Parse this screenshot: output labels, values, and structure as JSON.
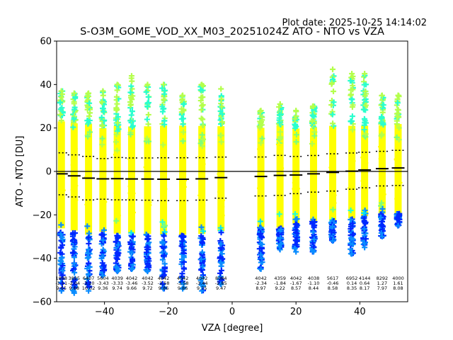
{
  "chart_data": {
    "type": "scatter",
    "plot_date": "Plot date: 2025-10-25 14:14:02",
    "title": "S-O3M_GOME_VOD_XX_M03_20251024Z ATO - NTO vs VZA",
    "xlabel": "VZA [degree]",
    "ylabel": "ATO - NTO [DU]",
    "xlim": [
      -55,
      55
    ],
    "ylim": [
      -60,
      60
    ],
    "xticks": [
      -40,
      -20,
      0,
      20,
      40
    ],
    "xtick_labels": [
      "−40",
      "−20",
      "0",
      "20",
      "40"
    ],
    "yticks": [
      -60,
      -40,
      -20,
      0,
      20,
      40,
      60
    ],
    "ytick_labels": [
      "−60",
      "−40",
      "−20",
      "0",
      "20",
      "40",
      "60"
    ],
    "grid": false,
    "zero_line": 0,
    "marker": "+",
    "colors": {
      "yellow": "#ffff00",
      "lime": "#b4ff4c",
      "green": "#7dff7a",
      "cyan": "#29ffce",
      "teal": "#00e5f7",
      "lightblue": "#0a8cff",
      "blue": "#0028ff",
      "median_line": "#000000",
      "stdev_line": "#000000",
      "axis": "#000000"
    },
    "groups": [
      {
        "vza": -53.5,
        "count": "1898",
        "median": "-1.11",
        "stdev": "9.65",
        "median_value": -1.11,
        "stdev_value": 9.65,
        "range": [
          -55,
          37
        ]
      },
      {
        "vza": -49.5,
        "count": "3895",
        "median": "-2.04",
        "stdev": "9.68",
        "median_value": -2.04,
        "stdev_value": 9.68,
        "range": [
          -56,
          36
        ]
      },
      {
        "vza": -45.0,
        "count": "6407",
        "median": "-3.10",
        "stdev": "10.02",
        "median_value": -3.1,
        "stdev_value": 10.02,
        "range": [
          -55,
          36
        ]
      },
      {
        "vza": -40.5,
        "count": "5604",
        "median": "-3.43",
        "stdev": "9.36",
        "median_value": -3.43,
        "stdev_value": 9.36,
        "range": [
          -48,
          37
        ]
      },
      {
        "vza": -36.0,
        "count": "4039",
        "median": "-3.33",
        "stdev": "9.74",
        "median_value": -3.33,
        "stdev_value": 9.74,
        "range": [
          -46,
          40
        ]
      },
      {
        "vza": -31.5,
        "count": "4042",
        "median": "-3.46",
        "stdev": "9.66",
        "median_value": -3.46,
        "stdev_value": 9.66,
        "range": [
          -45,
          44
        ]
      },
      {
        "vza": -26.5,
        "count": "4042",
        "median": "-3.52",
        "stdev": "9.72",
        "median_value": -3.52,
        "stdev_value": 9.72,
        "range": [
          -46,
          40
        ]
      },
      {
        "vza": -21.5,
        "count": "4042",
        "median": "-3.58",
        "stdev": "9.86",
        "median_value": -3.58,
        "stdev_value": 9.86,
        "range": [
          -54,
          40
        ]
      },
      {
        "vza": -15.5,
        "count": "4042",
        "median": "-3.58",
        "stdev": "9.86",
        "median_value": -3.58,
        "stdev_value": 9.86,
        "range": [
          -54,
          35
        ]
      },
      {
        "vza": -9.5,
        "count": "4042",
        "median": "-3.44",
        "stdev": "9.75",
        "median_value": -3.44,
        "stdev_value": 9.75,
        "range": [
          -55,
          40
        ]
      },
      {
        "vza": -3.5,
        "count": "8084",
        "median": "-2.85",
        "stdev": "9.47",
        "median_value": -2.85,
        "stdev_value": 9.47,
        "range": [
          -52,
          38
        ]
      },
      {
        "vza": 9.0,
        "count": "4042",
        "median": "-2.34",
        "stdev": "8.97",
        "median_value": -2.34,
        "stdev_value": 8.97,
        "range": [
          -45,
          28
        ]
      },
      {
        "vza": 15.0,
        "count": "4359",
        "median": "-1.84",
        "stdev": "9.22",
        "median_value": -1.84,
        "stdev_value": 9.22,
        "range": [
          -36,
          31
        ]
      },
      {
        "vza": 20.0,
        "count": "4042",
        "median": "-1.67",
        "stdev": "8.57",
        "median_value": -1.67,
        "stdev_value": 8.57,
        "range": [
          -37,
          28
        ]
      },
      {
        "vza": 25.5,
        "count": "4038",
        "median": "-1.10",
        "stdev": "8.44",
        "median_value": -1.1,
        "stdev_value": 8.44,
        "range": [
          -37,
          30
        ]
      },
      {
        "vza": 31.5,
        "count": "5617",
        "median": "-0.46",
        "stdev": "8.58",
        "median_value": -0.46,
        "stdev_value": 8.58,
        "range": [
          -32,
          47
        ]
      },
      {
        "vza": 37.5,
        "count": "6952",
        "median": "0.14",
        "stdev": "8.35",
        "median_value": 0.14,
        "stdev_value": 8.35,
        "range": [
          -38,
          45
        ]
      },
      {
        "vza": 41.5,
        "count": "4144",
        "median": "0.64",
        "stdev": "8.17",
        "median_value": 0.64,
        "stdev_value": 8.17,
        "range": [
          -35,
          45
        ]
      },
      {
        "vza": 47.0,
        "count": "8292",
        "median": "1.27",
        "stdev": "7.97",
        "median_value": 1.27,
        "stdev_value": 7.97,
        "range": [
          -30,
          35
        ]
      },
      {
        "vza": 52.0,
        "count": "4000",
        "median": "1.61",
        "stdev": "8.08",
        "median_value": 1.61,
        "stdev_value": 8.08,
        "range": [
          -25,
          35
        ]
      }
    ]
  }
}
